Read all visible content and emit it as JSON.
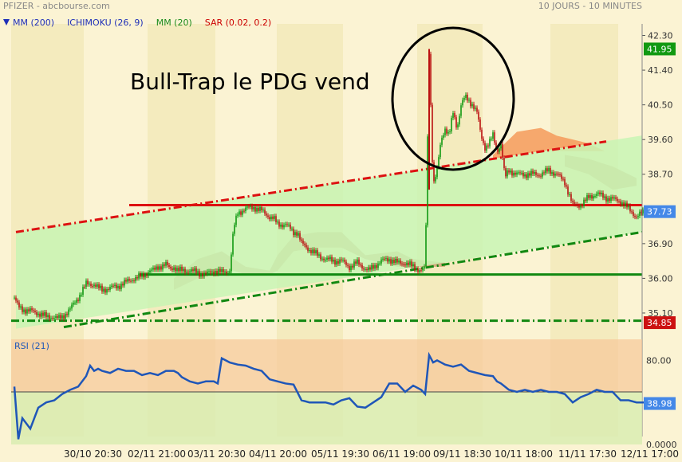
{
  "header": {
    "source": "PFIZER - abcbourse.com",
    "period": "10 JOURS - 10 MINUTES"
  },
  "legend": [
    {
      "label": "MM (200)",
      "color": "#1f2fb8"
    },
    {
      "label": "ICHIMOKU (26, 9)",
      "color": "#1f2fb8"
    },
    {
      "label": "MM (20)",
      "color": "#1a8a1a"
    },
    {
      "label": "SAR (0.02, 0.2)",
      "color": "#cc0000"
    }
  ],
  "annotation": "Bull-Trap le PDG vend",
  "colors": {
    "background": "#fbf3d3",
    "band_light": "#f4ebbe",
    "channel_fill": "#c8f5b4",
    "resistance": "#dd1111",
    "support": "#118811",
    "candle_up": "#119911",
    "candle_down": "#bb1111",
    "rsi_line": "#1f56b8",
    "rsi_over": "#f7c898",
    "rsi_under": "#d8ecb0",
    "cloud": "#c8956a",
    "cloud_orange": "#f49a5a",
    "label_green": "#119911",
    "label_blue": "#4488e8",
    "label_red": "#cc1111"
  },
  "chart_data": [
    {
      "type": "candlestick",
      "title": "PFIZER",
      "x_labels": [
        "30/10 20:30",
        "02/11 21:00",
        "03/11 20:30",
        "04/11 20:00",
        "05/11 19:30",
        "06/11 19:00",
        "09/11 18:30",
        "10/11 18:00",
        "11/11 17:30",
        "12/11 17:00"
      ],
      "yticks": [
        35.1,
        36.0,
        36.9,
        38.7,
        39.6,
        40.5,
        41.4,
        42.3
      ],
      "ylim": [
        34.5,
        42.6
      ],
      "price_labels": [
        {
          "text": "41.95",
          "value": 41.95,
          "color": "green"
        },
        {
          "text": "37.73",
          "value": 37.73,
          "color": "blue"
        },
        {
          "text": "34.85",
          "value": 34.85,
          "color": "red"
        }
      ],
      "levels": {
        "resistance_h": 37.9,
        "support_h": 36.1,
        "base_h": 34.9
      },
      "path_x": [
        0,
        5,
        10,
        20,
        30,
        40,
        50,
        55,
        60,
        70,
        75,
        80,
        90,
        100,
        105,
        110,
        120,
        130,
        140,
        150,
        160,
        170,
        175,
        180,
        190,
        195,
        200,
        205,
        210,
        220,
        230,
        240,
        250,
        260,
        270,
        275,
        280,
        290,
        300,
        310,
        320,
        325,
        330,
        340,
        350,
        355,
        360,
        370,
        380,
        390,
        400,
        410,
        420,
        430,
        440,
        445,
        450,
        460,
        470,
        480,
        490,
        500,
        510,
        515,
        520,
        525,
        530,
        535,
        540,
        545,
        550,
        555,
        560,
        565,
        570,
        575,
        580,
        585,
        590,
        595,
        600,
        605,
        610,
        615,
        620,
        630,
        640,
        650,
        660,
        670,
        680,
        690,
        700,
        710,
        720,
        730,
        740,
        750,
        760,
        770,
        780,
        790
      ],
      "path_y": [
        35.5,
        35.25,
        35.2,
        35.15,
        35.1,
        35.0,
        35.0,
        34.95,
        35.0,
        35.2,
        35.35,
        35.5,
        35.85,
        35.85,
        35.75,
        35.7,
        35.75,
        35.8,
        35.9,
        36.0,
        36.05,
        36.2,
        36.2,
        36.3,
        36.35,
        36.25,
        36.3,
        36.2,
        36.2,
        36.2,
        36.15,
        36.1,
        36.2,
        36.15,
        36.2,
        37.3,
        37.7,
        37.8,
        37.85,
        37.75,
        37.6,
        37.55,
        37.4,
        37.4,
        37.2,
        37.2,
        36.9,
        36.75,
        36.6,
        36.5,
        36.45,
        36.45,
        36.3,
        36.4,
        36.25,
        36.2,
        36.3,
        36.45,
        36.5,
        36.4,
        36.4,
        36.3,
        36.2,
        36.25,
        41.9,
        38.4,
        38.8,
        39.6,
        39.9,
        39.7,
        40.3,
        39.9,
        40.5,
        40.7,
        40.6,
        40.5,
        40.3,
        39.7,
        39.4,
        39.5,
        39.7,
        39.3,
        39.5,
        38.6,
        38.8,
        38.7,
        38.7,
        38.7,
        38.7,
        38.8,
        38.7,
        38.5,
        37.9,
        37.9,
        38.1,
        38.2,
        38.1,
        38.05,
        38.0,
        37.8,
        37.6,
        37.73
      ]
    },
    {
      "type": "line",
      "title": "RSI (21)",
      "yticks": [
        0.0,
        80.0
      ],
      "ytick_labels": [
        "0.0000",
        "80.00"
      ],
      "ylim": [
        0,
        100
      ],
      "bands": [
        70,
        30
      ],
      "current_value": "38.98",
      "x": [
        0,
        5,
        10,
        15,
        20,
        30,
        40,
        50,
        60,
        70,
        80,
        90,
        95,
        100,
        105,
        110,
        120,
        130,
        140,
        150,
        160,
        170,
        180,
        190,
        200,
        205,
        210,
        220,
        230,
        240,
        250,
        255,
        260,
        270,
        280,
        290,
        300,
        310,
        320,
        330,
        340,
        350,
        360,
        370,
        380,
        390,
        400,
        410,
        420,
        430,
        440,
        450,
        460,
        470,
        480,
        490,
        500,
        510,
        515,
        520,
        525,
        530,
        540,
        550,
        560,
        570,
        580,
        590,
        600,
        605,
        610,
        620,
        630,
        640,
        650,
        660,
        670,
        680,
        690,
        700,
        710,
        720,
        730,
        740,
        750,
        760,
        770,
        780,
        790
      ],
      "y": [
        55,
        5,
        25,
        20,
        15,
        35,
        40,
        42,
        48,
        52,
        55,
        65,
        75,
        70,
        72,
        70,
        68,
        72,
        70,
        70,
        66,
        68,
        66,
        70,
        70,
        68,
        64,
        60,
        58,
        60,
        60,
        58,
        82,
        78,
        76,
        75,
        72,
        70,
        62,
        60,
        58,
        57,
        42,
        40,
        40,
        40,
        38,
        42,
        44,
        36,
        35,
        40,
        45,
        58,
        58,
        50,
        56,
        52,
        48,
        85,
        78,
        80,
        76,
        74,
        76,
        70,
        68,
        66,
        65,
        60,
        58,
        52,
        50,
        52,
        50,
        52,
        50,
        50,
        48,
        40,
        45,
        48,
        52,
        50,
        50,
        42,
        42,
        40,
        40
      ]
    }
  ]
}
